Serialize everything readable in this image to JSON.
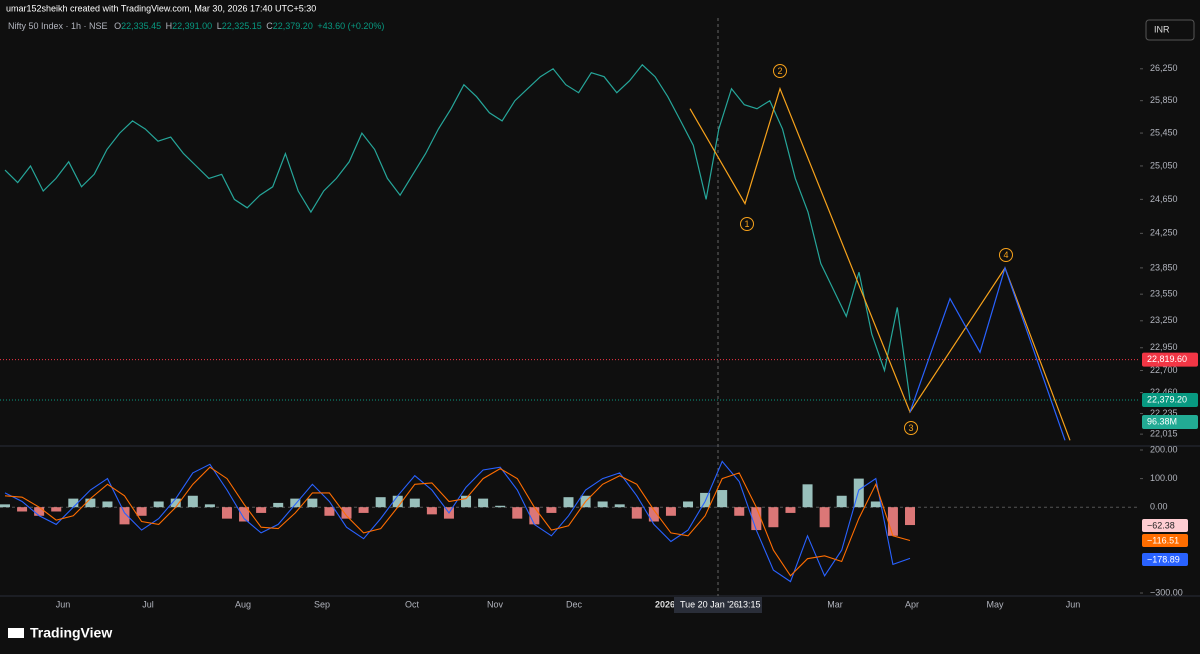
{
  "header": {
    "author_line": "umar152sheikh created with TradingView.com, Mar 30, 2026 17:40 UTC+5:30",
    "symbol": "Nifty 50 Index · 1h · NSE",
    "ohlc": [
      {
        "key": "O",
        "value": "22,335.45"
      },
      {
        "key": "H",
        "value": "22,391.00"
      },
      {
        "key": "L",
        "value": "22,325.15"
      },
      {
        "key": "C",
        "value": "22,379.20"
      }
    ],
    "change": "+43.60 (+0.20%)",
    "currency": "INR"
  },
  "chart_data": [
    {
      "type": "line",
      "log_scale": true,
      "color": "#26a69a",
      "ylim": [
        21900,
        26900
      ],
      "yticks": [
        {
          "value": 26250,
          "label": "26,250"
        },
        {
          "value": 25850,
          "label": "25,850"
        },
        {
          "value": 25450,
          "label": "25,450"
        },
        {
          "value": 25050,
          "label": "25,050"
        },
        {
          "value": 24650,
          "label": "24,650"
        },
        {
          "value": 24250,
          "label": "24,250"
        },
        {
          "value": 23850,
          "label": "23,850"
        },
        {
          "value": 23550,
          "label": "23,550"
        },
        {
          "value": 23250,
          "label": "23,250"
        },
        {
          "value": 22950,
          "label": "22,950"
        },
        {
          "value": 22700,
          "label": "22,700"
        },
        {
          "value": 22460,
          "label": "22,460"
        },
        {
          "value": 22235,
          "label": "22,235"
        },
        {
          "value": 22015,
          "label": "22,015"
        }
      ],
      "values": [
        25000,
        24850,
        25050,
        24750,
        24900,
        25100,
        24800,
        24950,
        25250,
        25450,
        25600,
        25500,
        25350,
        25400,
        25200,
        25050,
        24900,
        24950,
        24650,
        24550,
        24700,
        24800,
        25200,
        24750,
        24500,
        24750,
        24900,
        25100,
        25450,
        25250,
        24900,
        24700,
        24950,
        25200,
        25500,
        25750,
        26050,
        25900,
        25700,
        25600,
        25850,
        26000,
        26150,
        26250,
        26050,
        25950,
        26200,
        26150,
        25950,
        26100,
        26300,
        26150,
        25900,
        25600,
        25300,
        24650,
        25500,
        26000,
        25800,
        25750,
        25850,
        25500,
        24900,
        24500,
        23900,
        23600,
        23300,
        23800,
        23100,
        22700,
        23400,
        22379.2
      ],
      "projections": [
        {
          "color": "#f7a21b",
          "values": [
            25750,
            24600,
            26000,
            22250,
            23850,
            21950
          ]
        },
        {
          "color": "#2962ff",
          "values": [
            22250,
            23500,
            22900,
            23850,
            21950
          ]
        }
      ],
      "wave_labels": [
        "1",
        "2",
        "3",
        "4"
      ],
      "price_labels": [
        {
          "value": 22819.6,
          "label": "22,819.60",
          "color": "#f23645"
        },
        {
          "value": 22379.2,
          "label": "22,379.20",
          "color": "#089981"
        }
      ],
      "volume_label": "96.38M",
      "xticks": [
        "Jun",
        "Jul",
        "Aug",
        "Sep",
        "Oct",
        "Nov",
        "Dec",
        "2026",
        "Mar",
        "Apr",
        "May",
        "Jun"
      ],
      "cursor_date": "Tue 20 Jan '26",
      "cursor_time": "13:15"
    },
    {
      "type": "line",
      "ylim": [
        -300,
        200
      ],
      "yticks": [
        {
          "value": 200,
          "label": "200.00"
        },
        {
          "value": 100,
          "label": "100.00"
        },
        {
          "value": 0,
          "label": "0.00"
        },
        {
          "value": -300,
          "label": "−300.00"
        }
      ],
      "series": [
        {
          "color": "#2962ff",
          "values": [
            50,
            20,
            -30,
            -60,
            0,
            60,
            100,
            -20,
            -80,
            -40,
            30,
            120,
            150,
            60,
            -40,
            -90,
            -60,
            10,
            80,
            20,
            -70,
            -110,
            -40,
            40,
            110,
            60,
            -20,
            70,
            130,
            140,
            60,
            -60,
            -100,
            -30,
            60,
            100,
            120,
            40,
            -60,
            -120,
            -80,
            20,
            160,
            90,
            -80,
            -220,
            -260,
            -100,
            -240,
            -150,
            60,
            100,
            -200,
            -178.89
          ]
        },
        {
          "color": "#ff6d00",
          "values": [
            40,
            35,
            0,
            -45,
            -30,
            30,
            80,
            40,
            -50,
            -60,
            0,
            80,
            140,
            100,
            10,
            -70,
            -75,
            -20,
            50,
            50,
            -30,
            -90,
            -75,
            0,
            80,
            85,
            20,
            30,
            100,
            135,
            100,
            0,
            -80,
            -65,
            20,
            80,
            110,
            80,
            -10,
            -90,
            -100,
            -30,
            100,
            120,
            0,
            -150,
            -240,
            -180,
            -170,
            -190,
            -40,
            80,
            -100,
            -116.51
          ]
        }
      ],
      "histogram": {
        "positive_color": "#b2dfdb",
        "negative_color": "#ff8a8a",
        "values": [
          10,
          -15,
          -30,
          -15,
          30,
          30,
          20,
          -60,
          -30,
          20,
          30,
          40,
          10,
          -40,
          -50,
          -20,
          15,
          30,
          30,
          -30,
          -40,
          -20,
          35,
          40,
          30,
          -25,
          -40,
          40,
          30,
          5,
          -40,
          -60,
          -20,
          35,
          40,
          20,
          10,
          -40,
          -50,
          -30,
          20,
          50,
          60,
          -30,
          -80,
          -70,
          -20,
          80,
          -70,
          40,
          100,
          20,
          -100,
          -62.38
        ]
      },
      "value_badges": [
        {
          "value": -62.38,
          "label": "−62.38",
          "color": "#ffcdd2"
        },
        {
          "value": -116.51,
          "label": "−116.51",
          "color": "#ff6d00"
        },
        {
          "value": -178.89,
          "label": "−178.89",
          "color": "#2962ff"
        }
      ]
    }
  ],
  "footer": {
    "logo": "TradingView"
  }
}
